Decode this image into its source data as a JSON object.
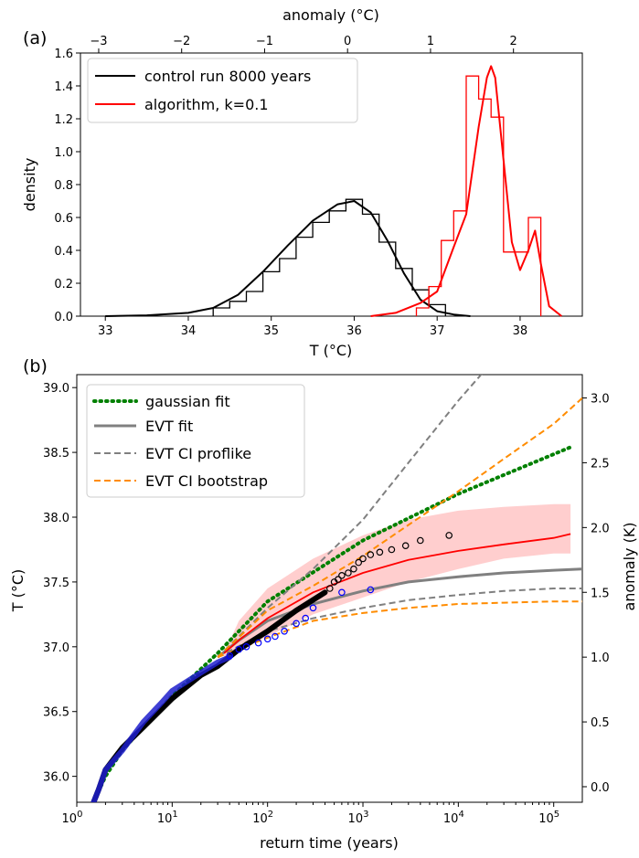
{
  "chart_data": [
    {
      "panel": "(a)",
      "type": "line",
      "xlabel": "T (°C)",
      "ylabel": "density",
      "top_xlabel": "anomaly (°C)",
      "xlim": [
        32.7,
        38.75
      ],
      "ylim": [
        0,
        1.6
      ],
      "xticks": [
        "33",
        "34",
        "35",
        "36",
        "37",
        "38"
      ],
      "yticks": [
        "0.0",
        "0.2",
        "0.4",
        "0.6",
        "0.8",
        "1.0",
        "1.2",
        "1.4",
        "1.6"
      ],
      "top_xticks": [
        "−3",
        "−2",
        "−1",
        "0",
        "1",
        "2"
      ],
      "top_xtick_values": [
        -3,
        -2,
        -1,
        0,
        1,
        2
      ],
      "anomaly_offset": 35.92,
      "legend_position": "top-left",
      "series": [
        {
          "name": "control run 8000 years",
          "color": "#000000",
          "kde": {
            "x": [
              33.0,
              33.5,
              34.0,
              34.3,
              34.6,
              34.9,
              35.2,
              35.5,
              35.8,
              36.0,
              36.2,
              36.4,
              36.6,
              36.8,
              37.0,
              37.2,
              37.4
            ],
            "y": [
              0.0,
              0.005,
              0.02,
              0.05,
              0.13,
              0.27,
              0.43,
              0.58,
              0.68,
              0.7,
              0.63,
              0.46,
              0.26,
              0.1,
              0.03,
              0.01,
              0.0
            ]
          },
          "hist": {
            "edges": [
              34.3,
              34.5,
              34.7,
              34.9,
              35.1,
              35.3,
              35.5,
              35.7,
              35.9,
              36.1,
              36.3,
              36.5,
              36.7,
              36.9,
              37.1
            ],
            "values": [
              0.05,
              0.09,
              0.15,
              0.27,
              0.35,
              0.48,
              0.57,
              0.64,
              0.71,
              0.62,
              0.45,
              0.29,
              0.16,
              0.07
            ]
          }
        },
        {
          "name": "algorithm, k=0.1",
          "color": "#ff0000",
          "kde": {
            "x": [
              36.2,
              36.5,
              36.8,
              37.0,
              37.2,
              37.35,
              37.5,
              37.6,
              37.65,
              37.7,
              37.8,
              37.9,
              38.0,
              38.1,
              38.18,
              38.25,
              38.35,
              38.5
            ],
            "y": [
              0.0,
              0.02,
              0.08,
              0.15,
              0.42,
              0.62,
              1.15,
              1.45,
              1.52,
              1.45,
              0.95,
              0.45,
              0.28,
              0.4,
              0.52,
              0.32,
              0.06,
              0.0
            ]
          },
          "hist": {
            "edges": [
              36.75,
              36.9,
              37.05,
              37.2,
              37.35,
              37.5,
              37.65,
              37.8,
              37.95,
              38.1,
              38.25
            ],
            "values": [
              0.05,
              0.18,
              0.46,
              0.64,
              1.46,
              1.32,
              1.21,
              0.39,
              0.39,
              0.6
            ]
          }
        }
      ]
    },
    {
      "panel": "(b)",
      "type": "line",
      "xlabel": "return time (years)",
      "ylabel": "T (°C)",
      "right_ylabel": "anomaly (K)",
      "xscale": "log",
      "xlim_log10": [
        0,
        5.3
      ],
      "ylim": [
        35.8,
        39.1
      ],
      "yticks": [
        "36.0",
        "36.5",
        "37.0",
        "37.5",
        "38.0",
        "38.5",
        "39.0"
      ],
      "xticks_log10": [
        0,
        1,
        2,
        3,
        4,
        5
      ],
      "right_yticks": [
        "0.0",
        "0.5",
        "1.0",
        "1.5",
        "2.0",
        "2.5",
        "3.0"
      ],
      "right_ytick_values": [
        0.0,
        0.5,
        1.0,
        1.5,
        2.0,
        2.5,
        3.0
      ],
      "right_offset": 35.92,
      "legend_position": "top-left",
      "series": [
        {
          "name": "gaussian fit",
          "color": "#008000",
          "style": "dotted",
          "x": [
            1.5,
            2,
            3,
            5,
            10,
            30,
            100,
            1000,
            10000,
            150000
          ],
          "y": [
            35.8,
            36.0,
            36.2,
            36.38,
            36.62,
            36.95,
            37.35,
            37.82,
            38.18,
            38.54
          ]
        },
        {
          "name": "EVT fit",
          "color": "#808080",
          "style": "solid",
          "x": [
            30,
            50,
            100,
            300,
            1000,
            3000,
            10000,
            30000,
            100000,
            200000
          ],
          "y": [
            36.92,
            37.05,
            37.2,
            37.33,
            37.43,
            37.5,
            37.54,
            37.57,
            37.59,
            37.6
          ]
        },
        {
          "name": "EVT CI proflike",
          "color": "#808080",
          "style": "dashed",
          "x": [
            30,
            50,
            100,
            300,
            1000,
            3000,
            10000,
            30000
          ],
          "y": [
            36.92,
            37.08,
            37.3,
            37.6,
            37.98,
            38.42,
            38.9,
            39.3
          ]
        },
        {
          "name": "EVT CI proflike",
          "color": "#808080",
          "style": "dashed",
          "x": [
            30,
            100,
            300,
            1000,
            3000,
            10000,
            30000,
            100000,
            200000
          ],
          "y": [
            36.92,
            37.12,
            37.22,
            37.3,
            37.36,
            37.4,
            37.43,
            37.45,
            37.45
          ]
        },
        {
          "name": "EVT CI bootstrap",
          "color": "#ff8c00",
          "style": "dashed",
          "x": [
            30,
            100,
            300,
            1000,
            3000,
            10000,
            30000,
            100000,
            200000
          ],
          "y": [
            36.92,
            37.28,
            37.47,
            37.7,
            37.94,
            38.2,
            38.45,
            38.72,
            38.92
          ]
        },
        {
          "name": "EVT CI bootstrap",
          "color": "#ff8c00",
          "style": "dashed",
          "x": [
            30,
            100,
            300,
            1000,
            3000,
            10000,
            30000,
            100000,
            200000
          ],
          "y": [
            36.92,
            37.07,
            37.2,
            37.26,
            37.3,
            37.33,
            37.34,
            37.35,
            37.35
          ]
        },
        {
          "name": "algorithm",
          "color": "#ff0000",
          "style": "solid",
          "x": [
            35,
            50,
            100,
            300,
            1000,
            3000,
            10000,
            30000,
            100000,
            150000
          ],
          "y": [
            36.95,
            37.05,
            37.22,
            37.42,
            37.57,
            37.67,
            37.74,
            37.79,
            37.84,
            37.87
          ]
        },
        {
          "name": "algorithm band upper",
          "color": "#ffb3b3",
          "style": "band",
          "x": [
            35,
            50,
            100,
            300,
            1000,
            3000,
            10000,
            30000,
            100000,
            150000
          ],
          "y": [
            36.95,
            37.2,
            37.45,
            37.68,
            37.86,
            37.98,
            38.05,
            38.08,
            38.1,
            38.1
          ]
        },
        {
          "name": "algorithm band lower",
          "color": "#ffb3b3",
          "style": "band",
          "x": [
            35,
            50,
            100,
            300,
            1000,
            3000,
            10000,
            30000,
            100000,
            150000
          ],
          "y": [
            36.92,
            36.98,
            37.08,
            37.25,
            37.38,
            37.5,
            37.6,
            37.68,
            37.72,
            37.72
          ]
        },
        {
          "name": "control run curve",
          "color": "#000000",
          "style": "thick",
          "x": [
            1.5,
            1.7,
            2,
            3,
            5,
            10,
            20,
            30,
            50,
            100,
            200,
            400
          ],
          "y": [
            35.8,
            35.9,
            36.05,
            36.22,
            36.38,
            36.6,
            36.78,
            36.85,
            36.98,
            37.12,
            37.28,
            37.42
          ]
        },
        {
          "name": "control run points",
          "color": "#000000",
          "style": "points",
          "x": [
            450,
            500,
            550,
            600,
            700,
            800,
            900,
            1000,
            1200,
            1500,
            2000,
            2800,
            4000,
            8000
          ],
          "y": [
            37.45,
            37.5,
            37.52,
            37.55,
            37.57,
            37.6,
            37.65,
            37.68,
            37.71,
            37.73,
            37.75,
            37.78,
            37.82,
            37.86
          ]
        },
        {
          "name": "algorithm blue curve",
          "color": "#1f1fcc",
          "style": "bluecurve",
          "x": [
            1.5,
            1.7,
            2,
            3,
            5,
            8,
            10,
            20,
            30,
            40
          ],
          "y": [
            35.8,
            35.9,
            36.05,
            36.2,
            36.42,
            36.58,
            36.66,
            36.8,
            36.88,
            36.92
          ]
        },
        {
          "name": "algorithm points",
          "color": "#0000ff",
          "style": "points",
          "x": [
            40,
            50,
            60,
            80,
            100,
            120,
            150,
            200,
            250,
            300,
            600,
            1200
          ],
          "y": [
            36.93,
            36.98,
            37.0,
            37.03,
            37.06,
            37.08,
            37.12,
            37.18,
            37.22,
            37.3,
            37.42,
            37.44
          ]
        }
      ]
    }
  ]
}
